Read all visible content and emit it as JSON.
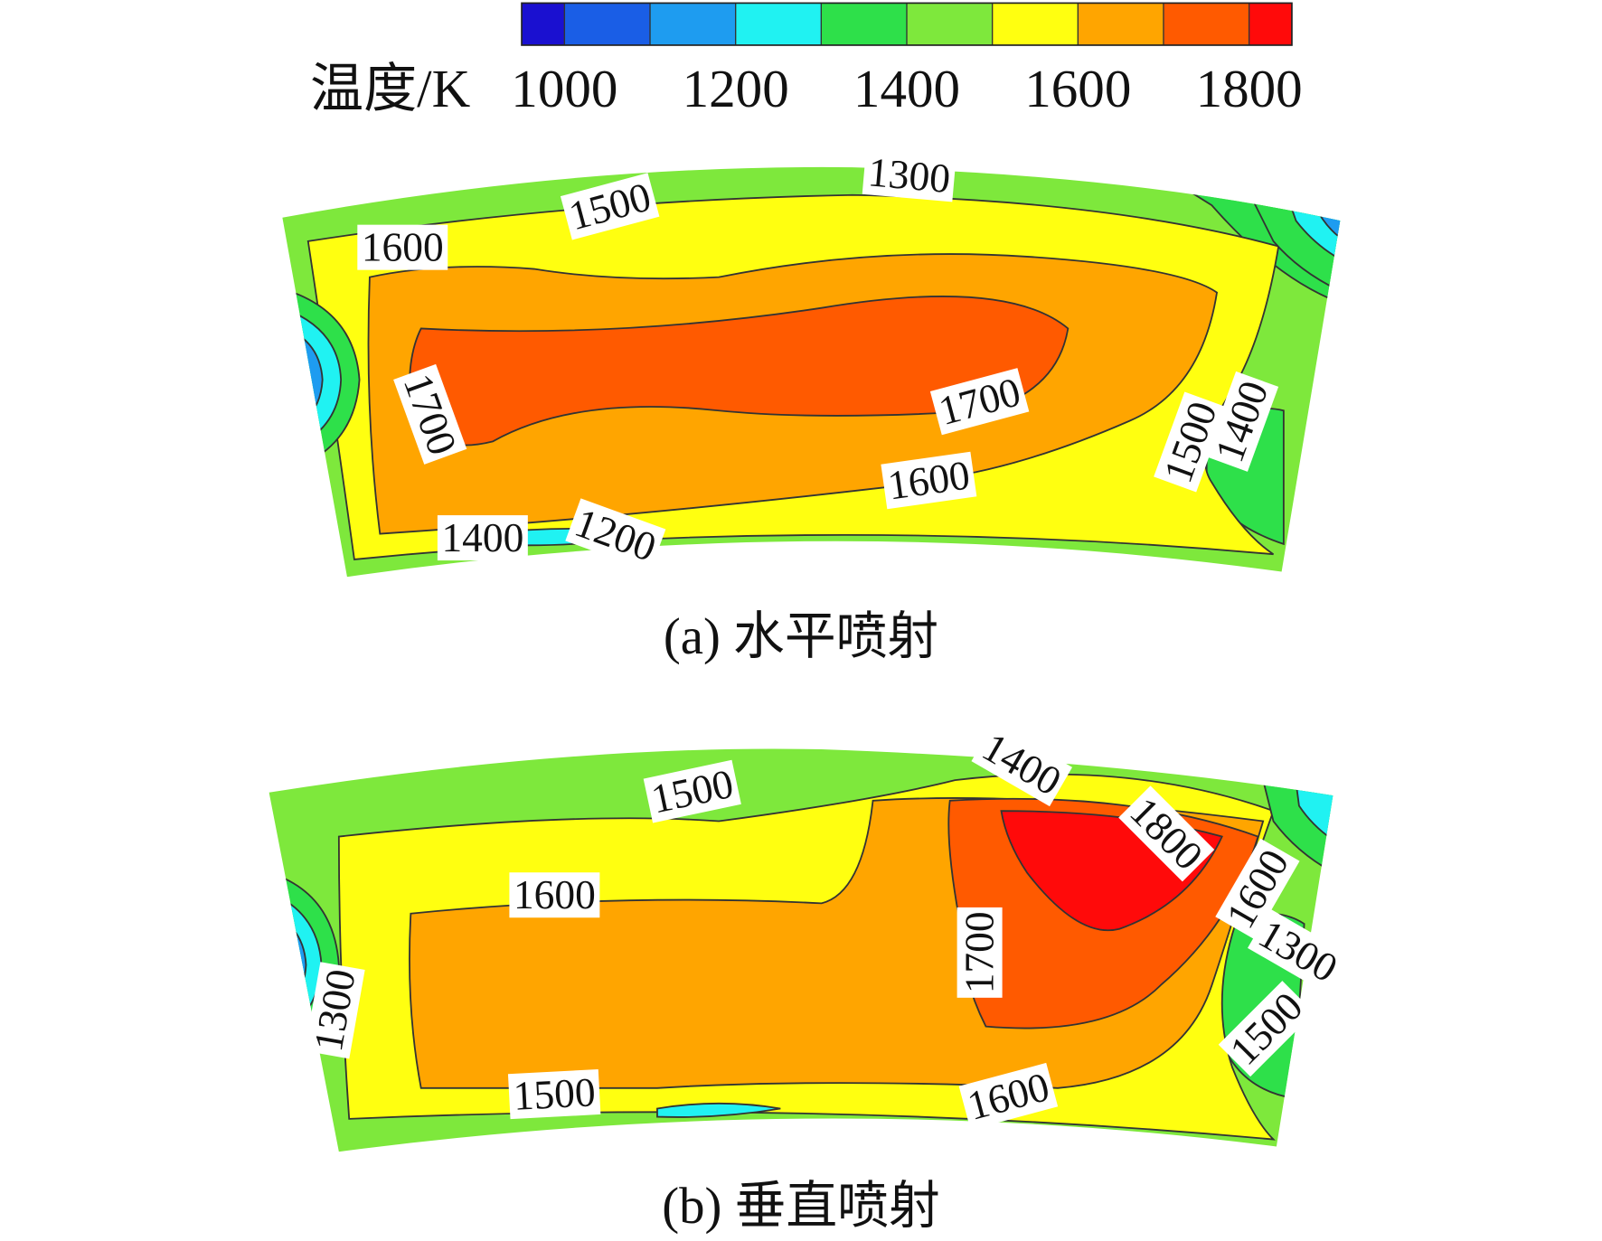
{
  "chart_data": {
    "type": "contour",
    "colorbar": {
      "title": "温度/K",
      "lim": [
        950,
        1850
      ],
      "levels": [
        1000,
        1100,
        1200,
        1300,
        1400,
        1500,
        1600,
        1700,
        1800
      ],
      "ticks": [
        1000,
        1200,
        1400,
        1600,
        1800
      ],
      "colors": [
        "#1a10d0",
        "#1a5ee6",
        "#1e9cf0",
        "#20f2f2",
        "#2ee04a",
        "#7ee83c",
        "#ffff10",
        "#ffa500",
        "#ff5a00",
        "#ff0a0a"
      ]
    },
    "panels": [
      {
        "caption": "(a) 水平喷射",
        "contour_labels": [
          1300,
          1500,
          1600,
          1700,
          1700,
          1600,
          1400,
          1200,
          1500,
          1400
        ]
      },
      {
        "caption": "(b) 垂直喷射",
        "contour_labels": [
          1400,
          1500,
          1800,
          1600,
          1600,
          1700,
          1300,
          1500,
          1300,
          1500,
          1600
        ]
      }
    ]
  }
}
